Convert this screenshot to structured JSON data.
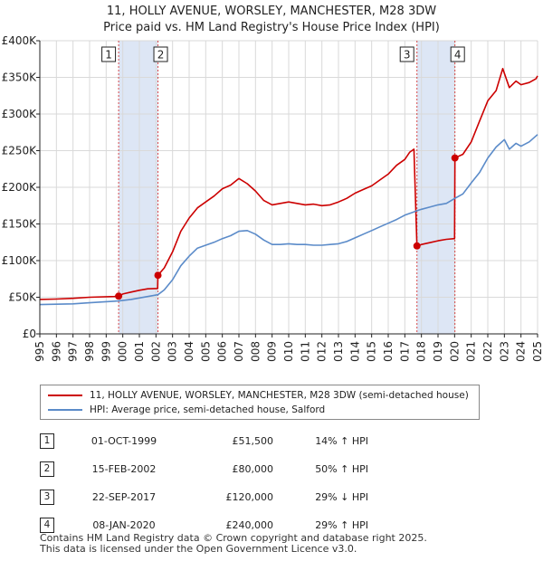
{
  "title_line1": "11, HOLLY AVENUE, WORSLEY, MANCHESTER, M28 3DW",
  "title_line2": "Price paid vs. HM Land Registry's House Price Index (HPI)",
  "colors": {
    "property": "#cc0000",
    "hpi": "#5b8bc9",
    "band": "#dde6f5",
    "grid": "#d9d9d9"
  },
  "chart_data": {
    "type": "line",
    "xlim": [
      1995,
      2025
    ],
    "ylim": [
      0,
      400000
    ],
    "x_ticks": [
      1995,
      1996,
      1997,
      1998,
      1999,
      2000,
      2001,
      2002,
      2003,
      2004,
      2005,
      2006,
      2007,
      2008,
      2009,
      2010,
      2011,
      2012,
      2013,
      2014,
      2015,
      2016,
      2017,
      2018,
      2019,
      2020,
      2021,
      2022,
      2023,
      2024,
      2025
    ],
    "y_ticks": [
      {
        "value": 0,
        "label": "£0"
      },
      {
        "value": 50000,
        "label": "£50K"
      },
      {
        "value": 100000,
        "label": "£100K"
      },
      {
        "value": 150000,
        "label": "£150K"
      },
      {
        "value": 200000,
        "label": "£200K"
      },
      {
        "value": 250000,
        "label": "£250K"
      },
      {
        "value": 300000,
        "label": "£300K"
      },
      {
        "value": 350000,
        "label": "£350K"
      },
      {
        "value": 400000,
        "label": "£400K"
      }
    ],
    "shaded_ranges": [
      [
        1999.75,
        2002.12
      ],
      [
        2017.73,
        2020.02
      ]
    ],
    "series": [
      {
        "name": "11, HOLLY AVENUE, WORSLEY, MANCHESTER, M28 3DW (semi-detached house)",
        "key": "property",
        "x": [
          1995,
          1996,
          1997,
          1998,
          1999.5,
          1999.75,
          2000,
          2000.5,
          2001,
          2001.5,
          2002.1,
          2002.12,
          2002.5,
          2003,
          2003.5,
          2004,
          2004.5,
          2005,
          2005.5,
          2006,
          2006.5,
          2007,
          2007.5,
          2008,
          2008.5,
          2009,
          2009.5,
          2010,
          2010.5,
          2011,
          2011.5,
          2012,
          2012.5,
          2013,
          2013.5,
          2014,
          2014.5,
          2015,
          2015.5,
          2016,
          2016.5,
          2017,
          2017.3,
          2017.55,
          2017.73,
          2018,
          2018.5,
          2019,
          2019.5,
          2020.0,
          2020.02,
          2020.5,
          2021,
          2021.5,
          2022,
          2022.5,
          2022.9,
          2023.3,
          2023.7,
          2024,
          2024.5,
          2024.9,
          2025
        ],
        "y": [
          47000,
          47500,
          48500,
          50000,
          51000,
          51500,
          54500,
          57000,
          59500,
          61500,
          62000,
          80000,
          90000,
          112000,
          140000,
          158000,
          172000,
          180000,
          188000,
          198000,
          203000,
          212000,
          205000,
          195000,
          182000,
          176000,
          178000,
          180000,
          178000,
          176000,
          177000,
          175000,
          176000,
          180000,
          185000,
          192000,
          197000,
          202000,
          210000,
          218000,
          230000,
          238000,
          248000,
          252000,
          120000,
          122000,
          124500,
          127000,
          129000,
          130000,
          240000,
          245000,
          262000,
          290000,
          318000,
          332000,
          362000,
          336000,
          345000,
          340000,
          343000,
          348000,
          352000
        ]
      },
      {
        "name": "HPI: Average price, semi-detached house, Salford",
        "key": "hpi",
        "x": [
          1995,
          1996,
          1997,
          1998,
          1999,
          1999.75,
          2000.5,
          2001,
          2001.5,
          2002.12,
          2002.5,
          2003,
          2003.5,
          2004,
          2004.5,
          2005,
          2005.5,
          2006,
          2006.5,
          2007,
          2007.5,
          2008,
          2008.5,
          2009,
          2009.5,
          2010,
          2010.5,
          2011,
          2011.5,
          2012,
          2012.5,
          2013,
          2013.5,
          2014,
          2014.5,
          2015,
          2015.5,
          2016,
          2016.5,
          2017,
          2017.5,
          2017.73,
          2018,
          2018.5,
          2019,
          2019.5,
          2020.02,
          2020.5,
          2021,
          2021.5,
          2022,
          2022.5,
          2023,
          2023.3,
          2023.7,
          2024,
          2024.5,
          2025
        ],
        "y": [
          40000,
          40500,
          41000,
          42500,
          44000,
          45000,
          47000,
          49000,
          51000,
          53500,
          60000,
          74000,
          93000,
          106000,
          117000,
          121000,
          125000,
          130000,
          134000,
          140000,
          141000,
          136000,
          128000,
          122000,
          122000,
          123000,
          122000,
          122000,
          121000,
          121000,
          122000,
          123000,
          126000,
          131000,
          136000,
          141000,
          146000,
          151000,
          156000,
          162000,
          166000,
          168000,
          170000,
          173000,
          176000,
          178000,
          185000,
          191000,
          206000,
          220000,
          240000,
          255000,
          265000,
          252000,
          260000,
          256000,
          262000,
          272000
        ]
      }
    ],
    "sale_points": [
      {
        "label": "1",
        "x": 1999.75,
        "y": 51500
      },
      {
        "label": "2",
        "x": 2002.12,
        "y": 80000
      },
      {
        "label": "3",
        "x": 2017.73,
        "y": 120000
      },
      {
        "label": "4",
        "x": 2020.02,
        "y": 240000
      }
    ]
  },
  "legend": {
    "property": "11, HOLLY AVENUE, WORSLEY, MANCHESTER, M28 3DW (semi-detached house)",
    "hpi": "HPI: Average price, semi-detached house, Salford"
  },
  "sales": [
    {
      "num": "1",
      "date": "01-OCT-1999",
      "price": "£51,500",
      "hpi": "14% ↑ HPI"
    },
    {
      "num": "2",
      "date": "15-FEB-2002",
      "price": "£80,000",
      "hpi": "50% ↑ HPI"
    },
    {
      "num": "3",
      "date": "22-SEP-2017",
      "price": "£120,000",
      "hpi": "29% ↓ HPI"
    },
    {
      "num": "4",
      "date": "08-JAN-2020",
      "price": "£240,000",
      "hpi": "29% ↑ HPI"
    }
  ],
  "footer_line1": "Contains HM Land Registry data © Crown copyright and database right 2025.",
  "footer_line2": "This data is licensed under the Open Government Licence v3.0."
}
